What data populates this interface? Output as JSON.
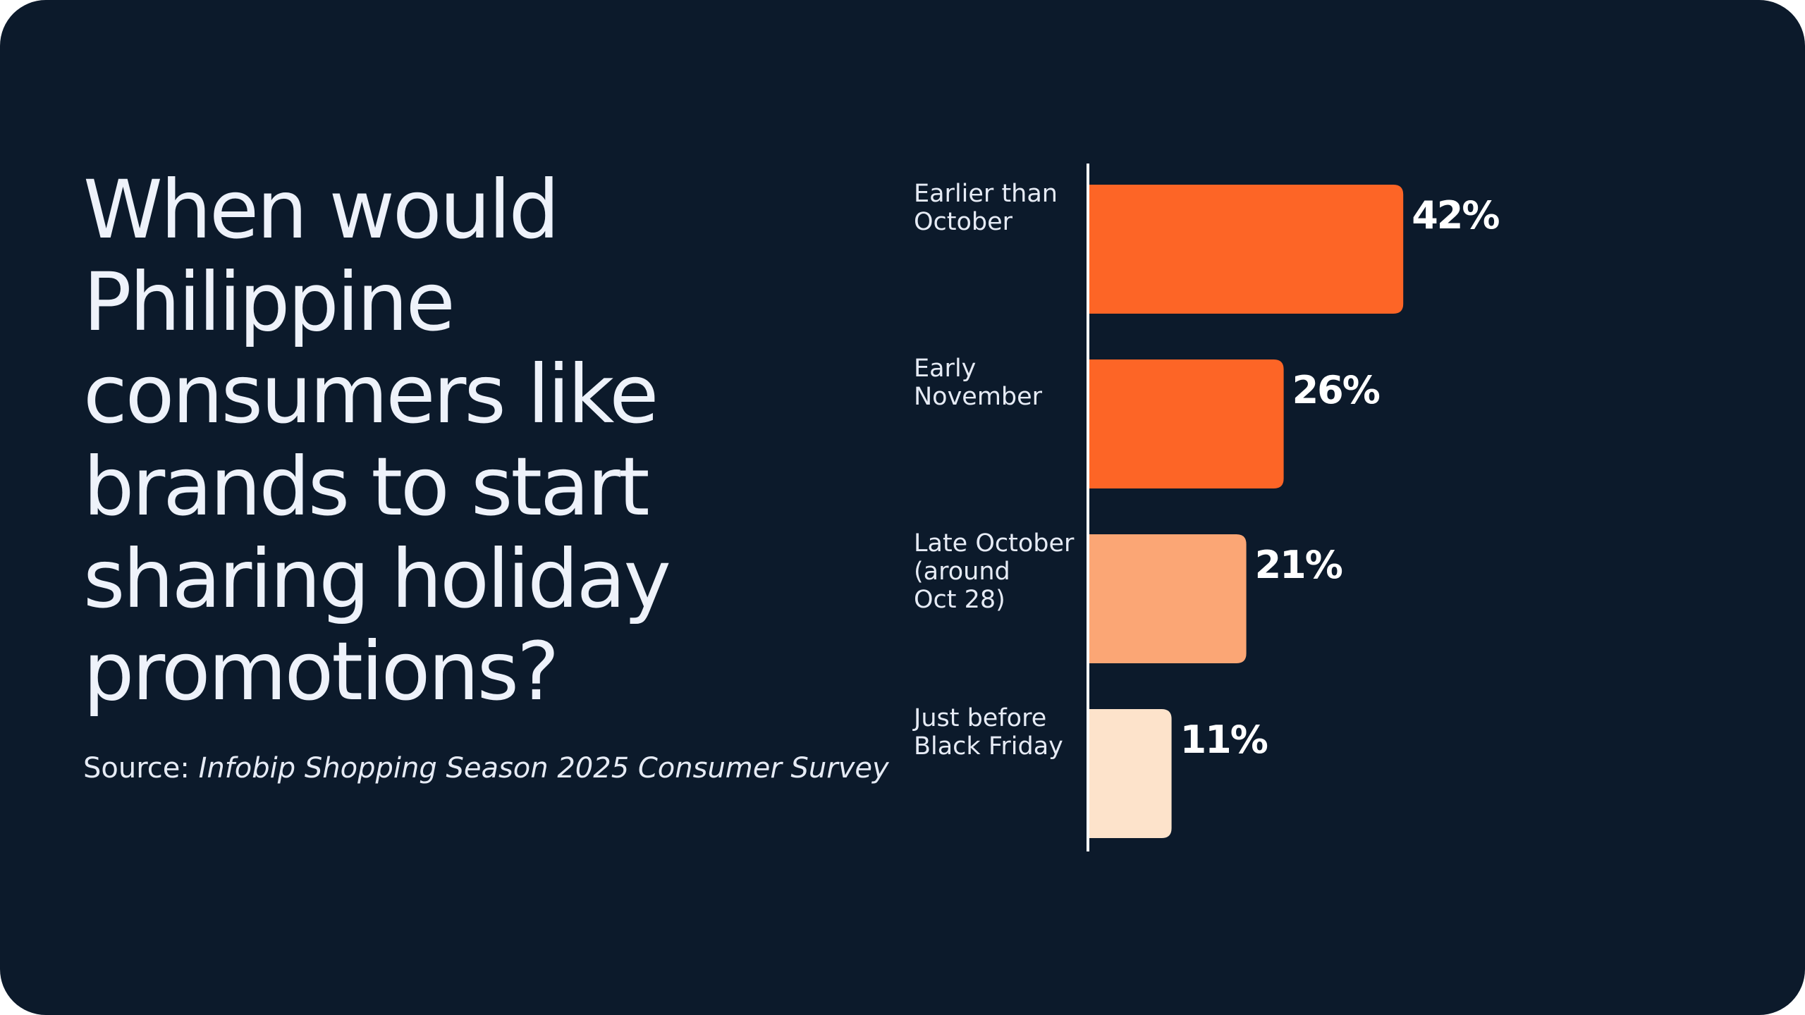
{
  "headline": {
    "lines": [
      "When would",
      "Philippine",
      "consumers like",
      "brands to start",
      "sharing holiday",
      "promotions?"
    ]
  },
  "source": {
    "prefix": "Source: ",
    "name": "Infobip Shopping Season 2025 Consumer Survey"
  },
  "colors": {
    "background": "#0c1a2b",
    "text": "#eef2fa",
    "axis": "#ffffff"
  },
  "chart_data": {
    "type": "bar",
    "orientation": "horizontal",
    "categories": [
      [
        "Earlier than",
        "October"
      ],
      [
        "Early",
        "November"
      ],
      [
        "Late October",
        "(around",
        "Oct 28)"
      ],
      [
        "Just before",
        "Black Friday"
      ]
    ],
    "values": [
      42,
      26,
      21,
      11
    ],
    "value_labels": [
      "42%",
      "26%",
      "21%",
      "11%"
    ],
    "bar_colors": [
      "#fd6526",
      "#fd6526",
      "#fba675",
      "#fde3cb"
    ],
    "xlim": [
      0,
      100
    ],
    "grid": false,
    "legend": "none"
  }
}
